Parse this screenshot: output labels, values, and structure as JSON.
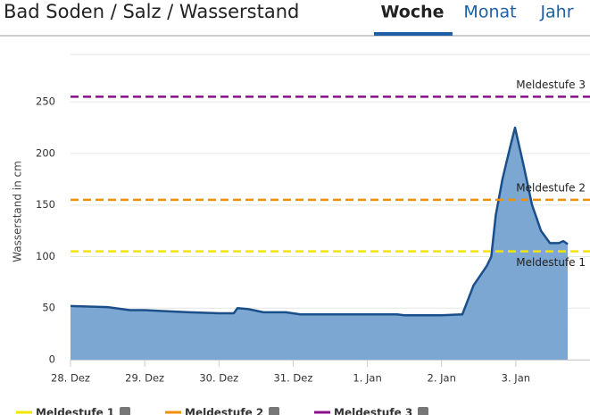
{
  "header": {
    "title": "Bad Soden / Salz / Wasserstand",
    "tabs": [
      "Woche",
      "Monat",
      "Jahr"
    ],
    "active_tab": 0
  },
  "chart_data": {
    "type": "area",
    "y_label": "Wasserstand in cm",
    "xlim": [
      0,
      7
    ],
    "xticks": [
      {
        "value": 0,
        "label": "28. Dez"
      },
      {
        "value": 1,
        "label": "29. Dez"
      },
      {
        "value": 2,
        "label": "30. Dez"
      },
      {
        "value": 3,
        "label": "31. Dez"
      },
      {
        "value": 4,
        "label": "1. Jan"
      },
      {
        "value": 5,
        "label": "2. Jan"
      },
      {
        "value": 6,
        "label": "3. Jan"
      }
    ],
    "ylim": [
      0,
      296
    ],
    "yticks": [
      0,
      50,
      100,
      150,
      200,
      250
    ],
    "grid": true,
    "series": [
      {
        "name": "Wasserstand",
        "color": "#1a4f8a",
        "fill": "#7ba7d2",
        "x": [
          0,
          0.5,
          0.6,
          0.8,
          1.0,
          1.3,
          1.6,
          2.0,
          2.2,
          2.25,
          2.4,
          2.6,
          2.9,
          3.1,
          3.5,
          4.0,
          4.4,
          4.5,
          5.0,
          5.28,
          5.43,
          5.61,
          5.67,
          5.73,
          5.82,
          5.92,
          5.99,
          6.1,
          6.22,
          6.34,
          6.46,
          6.58,
          6.64,
          6.7
        ],
        "values": [
          52,
          51,
          50,
          48,
          48,
          47,
          46,
          45,
          45,
          50,
          49,
          46,
          46,
          44,
          44,
          44,
          44,
          43,
          43,
          44,
          72,
          91,
          100,
          140,
          175,
          205,
          225,
          190,
          150,
          125,
          113,
          113,
          115,
          112
        ]
      }
    ],
    "thresholds": [
      {
        "name": "Meldestufe 1",
        "color": "#f2e600",
        "value": 105
      },
      {
        "name": "Meldestufe 2",
        "color": "#f0900a",
        "value": 155
      },
      {
        "name": "Meldestufe 3",
        "color": "#8b0f8b",
        "value": 255
      }
    ]
  }
}
